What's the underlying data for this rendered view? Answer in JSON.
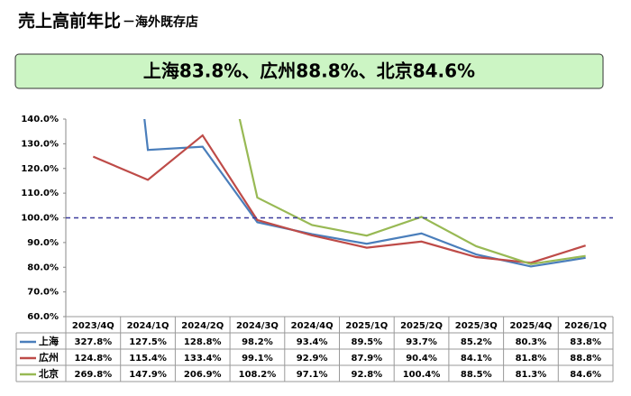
{
  "chart_data": {
    "type": "line",
    "title": "売上高前年比",
    "subtitle": "－海外既存店",
    "headline": "上海83.8%、広州88.8%、北京84.6%",
    "categories": [
      "2023/4Q",
      "2024/1Q",
      "2024/2Q",
      "2024/3Q",
      "2024/4Q",
      "2025/1Q",
      "2025/2Q",
      "2025/3Q",
      "2025/4Q",
      "2026/1Q"
    ],
    "series": [
      {
        "name": "上海",
        "color": "#4a7ebb",
        "values": [
          327.8,
          127.5,
          128.8,
          98.2,
          93.4,
          89.5,
          93.7,
          85.2,
          80.3,
          83.8
        ],
        "value_labels": [
          "327.8%",
          "127.5%",
          "128.8%",
          "98.2%",
          "93.4%",
          "89.5%",
          "93.7%",
          "85.2%",
          "80.3%",
          "83.8%"
        ]
      },
      {
        "name": "広州",
        "color": "#be4b48",
        "values": [
          124.8,
          115.4,
          133.4,
          99.1,
          92.9,
          87.9,
          90.4,
          84.1,
          81.8,
          88.8
        ],
        "value_labels": [
          "124.8%",
          "115.4%",
          "133.4%",
          "99.1%",
          "92.9%",
          "87.9%",
          "90.4%",
          "84.1%",
          "81.8%",
          "88.8%"
        ]
      },
      {
        "name": "北京",
        "color": "#98b954",
        "values": [
          269.8,
          147.9,
          206.9,
          108.2,
          97.1,
          92.8,
          100.4,
          88.5,
          81.3,
          84.6
        ],
        "value_labels": [
          "269.8%",
          "147.9%",
          "206.9%",
          "108.2%",
          "97.1%",
          "92.8%",
          "100.4%",
          "88.5%",
          "81.3%",
          "84.6%"
        ]
      }
    ],
    "ylim": [
      60,
      140
    ],
    "yticks": [
      {
        "value": 60,
        "label": "60.0%"
      },
      {
        "value": 70,
        "label": "70.0%"
      },
      {
        "value": 80,
        "label": "80.0%"
      },
      {
        "value": 90,
        "label": "90.0%"
      },
      {
        "value": 100,
        "label": "100.0%"
      },
      {
        "value": 110,
        "label": "110.0%"
      },
      {
        "value": 120,
        "label": "120.0%"
      },
      {
        "value": 130,
        "label": "130.0%"
      },
      {
        "value": 140,
        "label": "140.0%"
      }
    ],
    "reference_line": 100,
    "reference_color": "#3b3b9c"
  }
}
